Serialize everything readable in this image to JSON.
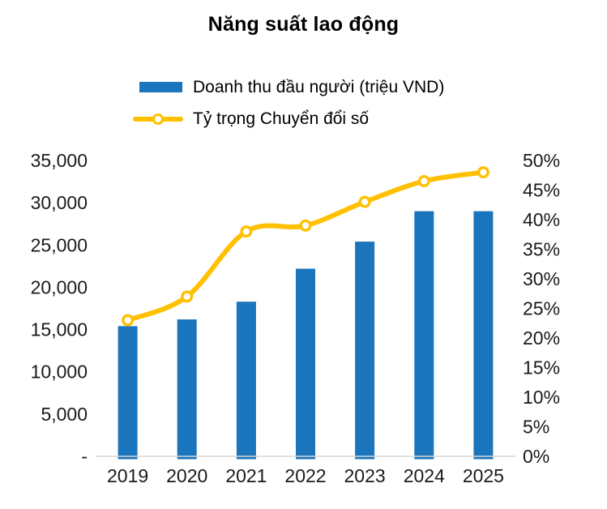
{
  "title": "Năng suất lao động",
  "colors": {
    "bar": "#1B75BC",
    "line": "#FFC000",
    "marker_fill": "#FFFFFF",
    "axis_line": "#D6D6D6",
    "text": "#1a1a1a"
  },
  "legend": {
    "position": "top",
    "items": [
      {
        "type": "bar",
        "label": "Doanh thu đầu người (triệu VND)"
      },
      {
        "type": "line",
        "label": "Tỷ trọng Chuyển đổi số"
      }
    ]
  },
  "chart_data": {
    "type": "combo-bar-line",
    "title": "Năng suất lao động",
    "categories": [
      "2019",
      "2020",
      "2021",
      "2022",
      "2023",
      "2024",
      "2025"
    ],
    "series": [
      {
        "name": "Doanh thu đầu người (triệu VND)",
        "type": "bar",
        "axis": "left",
        "values": [
          15400,
          16200,
          18300,
          22200,
          25400,
          29000,
          29000
        ]
      },
      {
        "name": "Tỷ trọng Chuyển đổi số",
        "type": "line",
        "axis": "right",
        "values": [
          23,
          27,
          38,
          39,
          43,
          46.5,
          48
        ]
      }
    ],
    "left_axis": {
      "min": 0,
      "max": 35000,
      "step": 5000,
      "tick_labels": [
        "-",
        "5,000",
        "10,000",
        "15,000",
        "20,000",
        "25,000",
        "30,000",
        "35,000"
      ]
    },
    "right_axis": {
      "min": 0,
      "max": 50,
      "step": 5,
      "tick_labels": [
        "0%",
        "5%",
        "10%",
        "15%",
        "20%",
        "25%",
        "30%",
        "35%",
        "40%",
        "45%",
        "50%"
      ]
    },
    "grid": false,
    "legend_position": "top"
  }
}
